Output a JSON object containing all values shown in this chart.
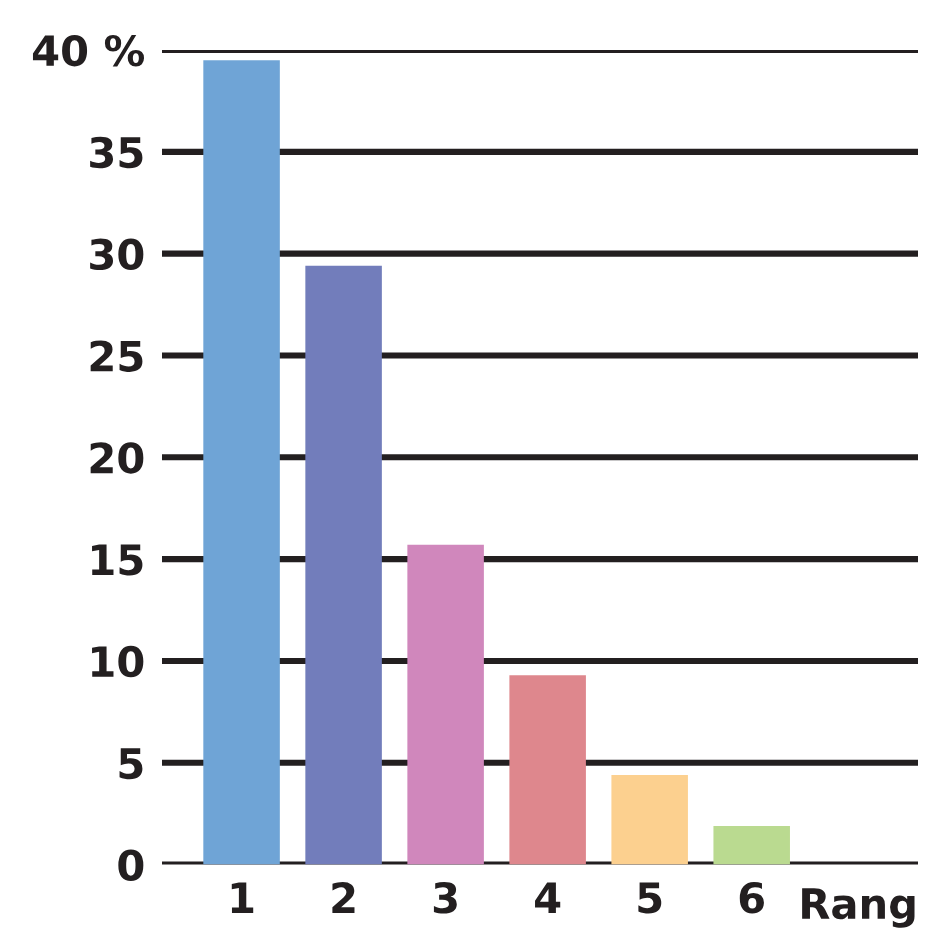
{
  "chart_data": {
    "type": "bar",
    "xlabel": "Rang",
    "categories": [
      "1",
      "2",
      "3",
      "4",
      "5",
      "6"
    ],
    "values": [
      39.5,
      29.4,
      15.7,
      9.3,
      4.4,
      1.9
    ],
    "colors": [
      "#6fa4d6",
      "#727dbb",
      "#d087bc",
      "#de878d",
      "#fcd08f",
      "#bada90"
    ],
    "ylim": [
      0,
      40
    ],
    "yticks": [
      0,
      5,
      10,
      15,
      20,
      25,
      30,
      35,
      {
        "value": 40,
        "label": "40 %"
      }
    ],
    "grid": "y"
  }
}
